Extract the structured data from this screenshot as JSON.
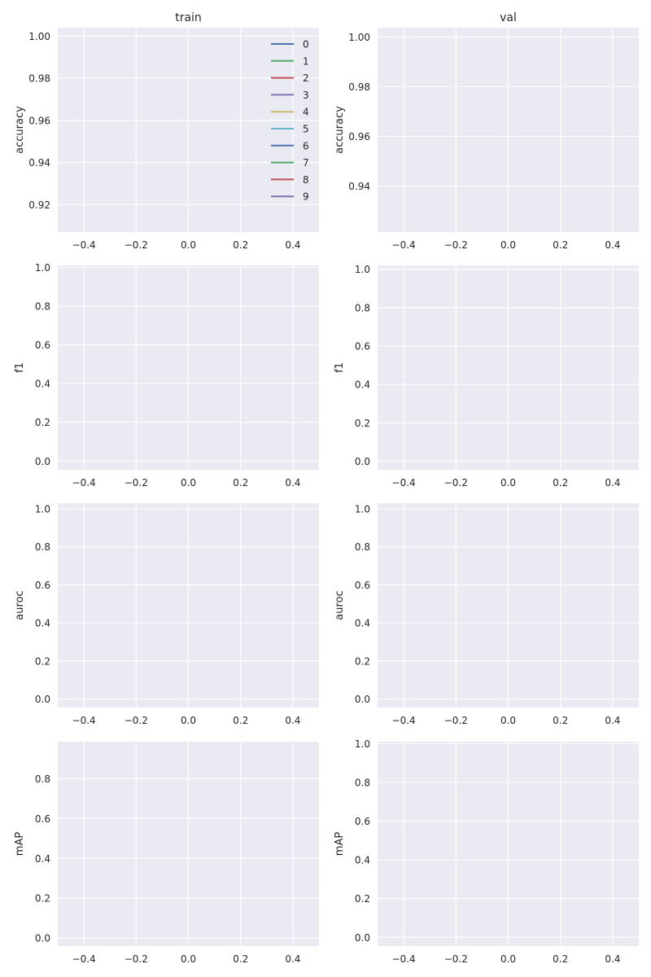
{
  "chart_data": {
    "type": "line",
    "columns": [
      "train",
      "val"
    ],
    "legend": {
      "location": "upper-right",
      "entries": [
        "0",
        "1",
        "2",
        "3",
        "4",
        "5",
        "6",
        "7",
        "8",
        "9"
      ],
      "colors": [
        "#4c72b0",
        "#55a868",
        "#c44e52",
        "#8172b2",
        "#ccb974",
        "#64b5cd",
        "#4c72b0",
        "#55a868",
        "#c44e52",
        "#8172b2"
      ]
    },
    "grid": true,
    "style": {
      "background": "#eaeaf2",
      "grid_color": "#ffffff",
      "text_color": "#262626"
    },
    "panels": [
      {
        "column": "train",
        "title": "train",
        "ylabel": "accuracy",
        "xlim": [
          -0.5,
          0.5
        ],
        "ylim": [
          0.907,
          1.004
        ],
        "xticks": [
          -0.4,
          -0.2,
          0.0,
          0.2,
          0.4
        ],
        "xtick_labels": [
          "−0.4",
          "−0.2",
          "0.0",
          "0.2",
          "0.4"
        ],
        "yticks": [
          0.92,
          0.94,
          0.96,
          0.98,
          1.0
        ],
        "ytick_labels": [
          "0.92",
          "0.94",
          "0.96",
          "0.98",
          "1.00"
        ],
        "series": [],
        "legend": true
      },
      {
        "column": "val",
        "title": "val",
        "ylabel": "accuracy",
        "xlim": [
          -0.5,
          0.5
        ],
        "ylim": [
          0.9215,
          1.0037
        ],
        "xticks": [
          -0.4,
          -0.2,
          0.0,
          0.2,
          0.4
        ],
        "xtick_labels": [
          "−0.4",
          "−0.2",
          "0.0",
          "0.2",
          "0.4"
        ],
        "yticks": [
          0.94,
          0.96,
          0.98,
          1.0
        ],
        "ytick_labels": [
          "0.94",
          "0.96",
          "0.98",
          "1.00"
        ],
        "series": [],
        "legend": false
      },
      {
        "column": "train",
        "title": "",
        "ylabel": "f1",
        "xlim": [
          -0.5,
          0.5
        ],
        "ylim": [
          -0.045,
          1.01
        ],
        "xticks": [
          -0.4,
          -0.2,
          0.0,
          0.2,
          0.4
        ],
        "xtick_labels": [
          "−0.4",
          "−0.2",
          "0.0",
          "0.2",
          "0.4"
        ],
        "yticks": [
          0.0,
          0.2,
          0.4,
          0.6,
          0.8,
          1.0
        ],
        "ytick_labels": [
          "0.0",
          "0.2",
          "0.4",
          "0.6",
          "0.8",
          "1.0"
        ],
        "series": [],
        "legend": false
      },
      {
        "column": "val",
        "title": "",
        "ylabel": "f1",
        "xlim": [
          -0.5,
          0.5
        ],
        "ylim": [
          -0.045,
          1.02
        ],
        "xticks": [
          -0.4,
          -0.2,
          0.0,
          0.2,
          0.4
        ],
        "xtick_labels": [
          "−0.4",
          "−0.2",
          "0.0",
          "0.2",
          "0.4"
        ],
        "yticks": [
          0.0,
          0.2,
          0.4,
          0.6,
          0.8,
          1.0
        ],
        "ytick_labels": [
          "0.0",
          "0.2",
          "0.4",
          "0.6",
          "0.8",
          "1.0"
        ],
        "series": [],
        "legend": false
      },
      {
        "column": "train",
        "title": "",
        "ylabel": "auroc",
        "xlim": [
          -0.5,
          0.5
        ],
        "ylim": [
          -0.045,
          1.03
        ],
        "xticks": [
          -0.4,
          -0.2,
          0.0,
          0.2,
          0.4
        ],
        "xtick_labels": [
          "−0.4",
          "−0.2",
          "0.0",
          "0.2",
          "0.4"
        ],
        "yticks": [
          0.0,
          0.2,
          0.4,
          0.6,
          0.8,
          1.0
        ],
        "ytick_labels": [
          "0.0",
          "0.2",
          "0.4",
          "0.6",
          "0.8",
          "1.0"
        ],
        "series": [],
        "legend": false
      },
      {
        "column": "val",
        "title": "",
        "ylabel": "auroc",
        "xlim": [
          -0.5,
          0.5
        ],
        "ylim": [
          -0.045,
          1.03
        ],
        "xticks": [
          -0.4,
          -0.2,
          0.0,
          0.2,
          0.4
        ],
        "xtick_labels": [
          "−0.4",
          "−0.2",
          "0.0",
          "0.2",
          "0.4"
        ],
        "yticks": [
          0.0,
          0.2,
          0.4,
          0.6,
          0.8,
          1.0
        ],
        "ytick_labels": [
          "0.0",
          "0.2",
          "0.4",
          "0.6",
          "0.8",
          "1.0"
        ],
        "series": [],
        "legend": false
      },
      {
        "column": "train",
        "title": "",
        "ylabel": "mAP",
        "xlim": [
          -0.5,
          0.5
        ],
        "ylim": [
          -0.04,
          0.985
        ],
        "xticks": [
          -0.4,
          -0.2,
          0.0,
          0.2,
          0.4
        ],
        "xtick_labels": [
          "−0.4",
          "−0.2",
          "0.0",
          "0.2",
          "0.4"
        ],
        "yticks": [
          0.0,
          0.2,
          0.4,
          0.6,
          0.8
        ],
        "ytick_labels": [
          "0.0",
          "0.2",
          "0.4",
          "0.6",
          "0.8"
        ],
        "series": [],
        "legend": false
      },
      {
        "column": "val",
        "title": "",
        "ylabel": "mAP",
        "xlim": [
          -0.5,
          0.5
        ],
        "ylim": [
          -0.045,
          1.01
        ],
        "xticks": [
          -0.4,
          -0.2,
          0.0,
          0.2,
          0.4
        ],
        "xtick_labels": [
          "−0.4",
          "−0.2",
          "0.0",
          "0.2",
          "0.4"
        ],
        "yticks": [
          0.0,
          0.2,
          0.4,
          0.6,
          0.8,
          1.0
        ],
        "ytick_labels": [
          "0.0",
          "0.2",
          "0.4",
          "0.6",
          "0.8",
          "1.0"
        ],
        "series": [],
        "legend": false
      }
    ]
  }
}
